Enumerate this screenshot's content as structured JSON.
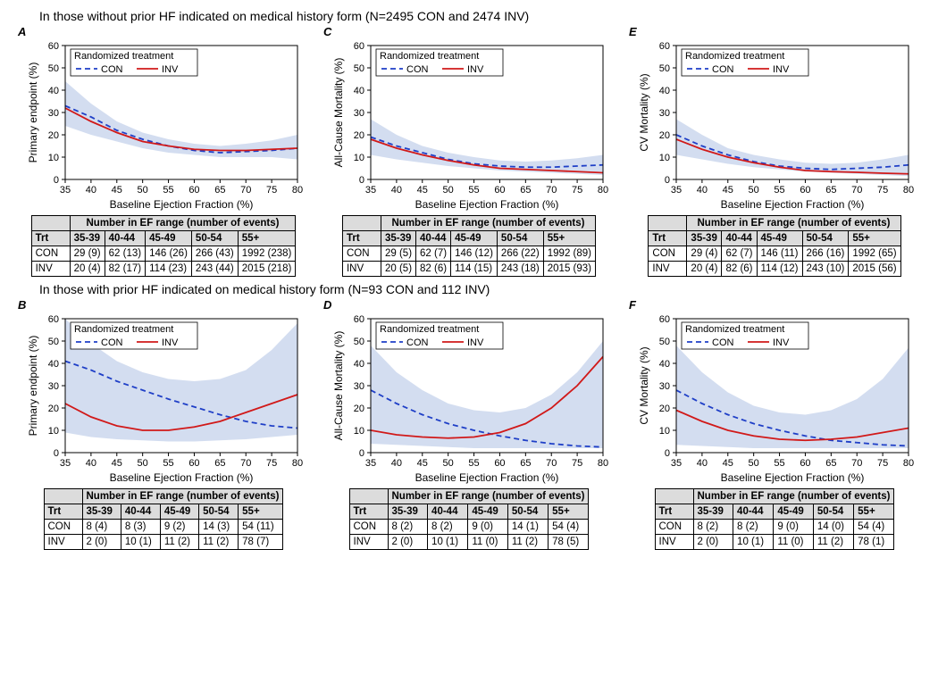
{
  "colors": {
    "con_line": "#1f3fc7",
    "inv_line": "#d11919",
    "ci_fill": "#c4d2eb",
    "axis": "#000000",
    "grid_bg": "#ffffff",
    "table_header_bg": "#dcdcdc",
    "border": "#000000"
  },
  "x_axis": {
    "title": "Baseline Ejection Fraction (%)",
    "min": 35,
    "max": 80,
    "ticks": [
      35,
      40,
      45,
      50,
      55,
      60,
      65,
      70,
      75,
      80
    ],
    "tick_fontsize": 11,
    "title_fontsize": 12
  },
  "y_axis_template": {
    "min": 0,
    "max": 60,
    "ticks": [
      0,
      10,
      20,
      30,
      40,
      50,
      60
    ],
    "tick_fontsize": 11,
    "title_fontsize": 12
  },
  "legend": {
    "title": "Randomized treatment",
    "con_label": "CON",
    "inv_label": "INV",
    "con_dash": "6,4",
    "con_width": 1.8,
    "inv_dash": "none",
    "inv_width": 1.8,
    "title_fontsize": 11,
    "label_fontsize": 11
  },
  "table_header": {
    "title": "Number in EF range (number of events)",
    "trt": "Trt",
    "ranges": [
      "35-39",
      "40-44",
      "45-49",
      "50-54",
      "55+"
    ],
    "row_labels": [
      "CON",
      "INV"
    ]
  },
  "group1_title": "In those without prior HF indicated on medical history form (N=2495 CON and 2474 INV)",
  "group2_title": "In those with prior HF indicated on medical history form (N=93 CON and 112 INV)",
  "panels": {
    "A": {
      "letter": "A",
      "y_title": "Primary endpoint (%)",
      "con": [
        [
          35,
          33
        ],
        [
          40,
          28
        ],
        [
          45,
          22
        ],
        [
          50,
          18
        ],
        [
          55,
          15
        ],
        [
          60,
          13
        ],
        [
          65,
          12
        ],
        [
          70,
          12.5
        ],
        [
          75,
          13
        ],
        [
          80,
          14
        ]
      ],
      "inv": [
        [
          35,
          32
        ],
        [
          40,
          26
        ],
        [
          45,
          21
        ],
        [
          50,
          17
        ],
        [
          55,
          15
        ],
        [
          60,
          13.5
        ],
        [
          65,
          13
        ],
        [
          70,
          13
        ],
        [
          75,
          13.5
        ],
        [
          80,
          14
        ]
      ],
      "ci_up": [
        [
          35,
          44
        ],
        [
          40,
          34
        ],
        [
          45,
          26
        ],
        [
          50,
          21
        ],
        [
          55,
          18
        ],
        [
          60,
          16
        ],
        [
          65,
          15
        ],
        [
          70,
          16
        ],
        [
          75,
          17.5
        ],
        [
          80,
          20
        ]
      ],
      "ci_lo": [
        [
          35,
          24
        ],
        [
          40,
          20
        ],
        [
          45,
          17
        ],
        [
          50,
          14
        ],
        [
          55,
          12
        ],
        [
          60,
          11
        ],
        [
          65,
          10
        ],
        [
          70,
          10
        ],
        [
          75,
          10
        ],
        [
          80,
          9
        ]
      ],
      "table": {
        "CON": [
          "29 (9)",
          "62 (13)",
          "146 (26)",
          "266 (43)",
          "1992 (238)"
        ],
        "INV": [
          "20 (4)",
          "82 (17)",
          "114 (23)",
          "243 (44)",
          "2015 (218)"
        ]
      }
    },
    "C": {
      "letter": "C",
      "y_title": "All-Cause Mortality (%)",
      "con": [
        [
          35,
          19
        ],
        [
          40,
          15
        ],
        [
          45,
          12
        ],
        [
          50,
          9
        ],
        [
          55,
          7
        ],
        [
          60,
          6
        ],
        [
          65,
          5.5
        ],
        [
          70,
          5.5
        ],
        [
          75,
          6
        ],
        [
          80,
          6.5
        ]
      ],
      "inv": [
        [
          35,
          18
        ],
        [
          40,
          14
        ],
        [
          45,
          11
        ],
        [
          50,
          8.5
        ],
        [
          55,
          6.5
        ],
        [
          60,
          5
        ],
        [
          65,
          4.5
        ],
        [
          70,
          4
        ],
        [
          75,
          3.5
        ],
        [
          80,
          3
        ]
      ],
      "ci_up": [
        [
          35,
          27
        ],
        [
          40,
          20
        ],
        [
          45,
          15
        ],
        [
          50,
          12
        ],
        [
          55,
          10
        ],
        [
          60,
          8.5
        ],
        [
          65,
          8
        ],
        [
          70,
          8.5
        ],
        [
          75,
          9.5
        ],
        [
          80,
          11
        ]
      ],
      "ci_lo": [
        [
          35,
          11
        ],
        [
          40,
          9
        ],
        [
          45,
          7.5
        ],
        [
          50,
          6
        ],
        [
          55,
          5
        ],
        [
          60,
          4
        ],
        [
          65,
          3.5
        ],
        [
          70,
          3
        ],
        [
          75,
          2.5
        ],
        [
          80,
          2
        ]
      ],
      "table": {
        "CON": [
          "29 (5)",
          "62 (7)",
          "146 (12)",
          "266 (22)",
          "1992 (89)"
        ],
        "INV": [
          "20 (5)",
          "82 (6)",
          "114 (15)",
          "243 (18)",
          "2015 (93)"
        ]
      }
    },
    "E": {
      "letter": "E",
      "y_title": "CV Mortality (%)",
      "con": [
        [
          35,
          20
        ],
        [
          40,
          15
        ],
        [
          45,
          11
        ],
        [
          50,
          8
        ],
        [
          55,
          6
        ],
        [
          60,
          5
        ],
        [
          65,
          4.5
        ],
        [
          70,
          5
        ],
        [
          75,
          5.5
        ],
        [
          80,
          6.5
        ]
      ],
      "inv": [
        [
          35,
          18
        ],
        [
          40,
          13.5
        ],
        [
          45,
          10
        ],
        [
          50,
          7.5
        ],
        [
          55,
          5.5
        ],
        [
          60,
          4
        ],
        [
          65,
          3.5
        ],
        [
          70,
          3.2
        ],
        [
          75,
          2.8
        ],
        [
          80,
          2.5
        ]
      ],
      "ci_up": [
        [
          35,
          27
        ],
        [
          40,
          20
        ],
        [
          45,
          14
        ],
        [
          50,
          11
        ],
        [
          55,
          9
        ],
        [
          60,
          7.5
        ],
        [
          65,
          7
        ],
        [
          70,
          7.5
        ],
        [
          75,
          9
        ],
        [
          80,
          11
        ]
      ],
      "ci_lo": [
        [
          35,
          11
        ],
        [
          40,
          9
        ],
        [
          45,
          7
        ],
        [
          50,
          5.5
        ],
        [
          55,
          4.5
        ],
        [
          60,
          3.5
        ],
        [
          65,
          3
        ],
        [
          70,
          2.5
        ],
        [
          75,
          2
        ],
        [
          80,
          1.5
        ]
      ],
      "table": {
        "CON": [
          "29 (4)",
          "62 (7)",
          "146 (11)",
          "266 (16)",
          "1992 (65)"
        ],
        "INV": [
          "20 (4)",
          "82 (6)",
          "114 (12)",
          "243 (10)",
          "2015 (56)"
        ]
      }
    },
    "B": {
      "letter": "B",
      "y_title": "Primary endpoint (%)",
      "con": [
        [
          35,
          41
        ],
        [
          40,
          37
        ],
        [
          45,
          32
        ],
        [
          50,
          28
        ],
        [
          55,
          24
        ],
        [
          60,
          20.5
        ],
        [
          65,
          17
        ],
        [
          70,
          14
        ],
        [
          75,
          12
        ],
        [
          80,
          11
        ]
      ],
      "inv": [
        [
          35,
          22
        ],
        [
          40,
          16
        ],
        [
          45,
          12
        ],
        [
          50,
          10
        ],
        [
          55,
          10
        ],
        [
          60,
          11.5
        ],
        [
          65,
          14
        ],
        [
          70,
          18
        ],
        [
          75,
          22
        ],
        [
          80,
          26
        ]
      ],
      "ci_up": [
        [
          35,
          60
        ],
        [
          40,
          49
        ],
        [
          45,
          41
        ],
        [
          50,
          36
        ],
        [
          55,
          33
        ],
        [
          60,
          32
        ],
        [
          65,
          33
        ],
        [
          70,
          37
        ],
        [
          75,
          46
        ],
        [
          80,
          58
        ]
      ],
      "ci_lo": [
        [
          35,
          9
        ],
        [
          40,
          7
        ],
        [
          45,
          6
        ],
        [
          50,
          5.5
        ],
        [
          55,
          5
        ],
        [
          60,
          5
        ],
        [
          65,
          5.5
        ],
        [
          70,
          6
        ],
        [
          75,
          7
        ],
        [
          80,
          8
        ]
      ],
      "table": {
        "CON": [
          "8 (4)",
          "8 (3)",
          "9 (2)",
          "14 (3)",
          "54 (11)"
        ],
        "INV": [
          "2 (0)",
          "10 (1)",
          "11 (2)",
          "11 (2)",
          "78 (7)"
        ]
      }
    },
    "D": {
      "letter": "D",
      "y_title": "All-Cause Mortality (%)",
      "con": [
        [
          35,
          28
        ],
        [
          40,
          22
        ],
        [
          45,
          17
        ],
        [
          50,
          13
        ],
        [
          55,
          10
        ],
        [
          60,
          7.5
        ],
        [
          65,
          5.5
        ],
        [
          70,
          4
        ],
        [
          75,
          3
        ],
        [
          80,
          2.5
        ]
      ],
      "inv": [
        [
          35,
          10
        ],
        [
          40,
          8
        ],
        [
          45,
          7
        ],
        [
          50,
          6.5
        ],
        [
          55,
          7
        ],
        [
          60,
          9
        ],
        [
          65,
          13
        ],
        [
          70,
          20
        ],
        [
          75,
          30
        ],
        [
          80,
          43
        ]
      ],
      "ci_up": [
        [
          35,
          48
        ],
        [
          40,
          36
        ],
        [
          45,
          28
        ],
        [
          50,
          22
        ],
        [
          55,
          19
        ],
        [
          60,
          18
        ],
        [
          65,
          20
        ],
        [
          70,
          26
        ],
        [
          75,
          36
        ],
        [
          80,
          50
        ]
      ],
      "ci_lo": [
        [
          35,
          4
        ],
        [
          40,
          3.5
        ],
        [
          45,
          3
        ],
        [
          50,
          2.5
        ],
        [
          55,
          2
        ],
        [
          60,
          2
        ],
        [
          65,
          2
        ],
        [
          70,
          2
        ],
        [
          75,
          2
        ],
        [
          80,
          2
        ]
      ],
      "table": {
        "CON": [
          "8 (2)",
          "8 (2)",
          "9 (0)",
          "14 (1)",
          "54 (4)"
        ],
        "INV": [
          "2 (0)",
          "10 (1)",
          "11 (0)",
          "11 (2)",
          "78 (5)"
        ]
      }
    },
    "F": {
      "letter": "F",
      "y_title": "CV Mortality (%)",
      "con": [
        [
          35,
          28
        ],
        [
          40,
          22
        ],
        [
          45,
          17
        ],
        [
          50,
          13
        ],
        [
          55,
          10
        ],
        [
          60,
          7.5
        ],
        [
          65,
          5.5
        ],
        [
          70,
          4.5
        ],
        [
          75,
          3.5
        ],
        [
          80,
          3
        ]
      ],
      "inv": [
        [
          35,
          19
        ],
        [
          40,
          14
        ],
        [
          45,
          10
        ],
        [
          50,
          7.5
        ],
        [
          55,
          6
        ],
        [
          60,
          5.5
        ],
        [
          65,
          6
        ],
        [
          70,
          7
        ],
        [
          75,
          9
        ],
        [
          80,
          11
        ]
      ],
      "ci_up": [
        [
          35,
          48
        ],
        [
          40,
          36
        ],
        [
          45,
          27
        ],
        [
          50,
          21
        ],
        [
          55,
          18
        ],
        [
          60,
          17
        ],
        [
          65,
          19
        ],
        [
          70,
          24
        ],
        [
          75,
          33
        ],
        [
          80,
          47
        ]
      ],
      "ci_lo": [
        [
          35,
          3.5
        ],
        [
          40,
          3
        ],
        [
          45,
          2.5
        ],
        [
          50,
          2
        ],
        [
          55,
          2
        ],
        [
          60,
          2
        ],
        [
          65,
          2
        ],
        [
          70,
          2
        ],
        [
          75,
          2
        ],
        [
          80,
          2
        ]
      ],
      "table": {
        "CON": [
          "8 (2)",
          "8 (2)",
          "9 (0)",
          "14 (0)",
          "54 (4)"
        ],
        "INV": [
          "2 (0)",
          "10 (1)",
          "11 (0)",
          "11 (2)",
          "78 (1)"
        ]
      }
    }
  }
}
